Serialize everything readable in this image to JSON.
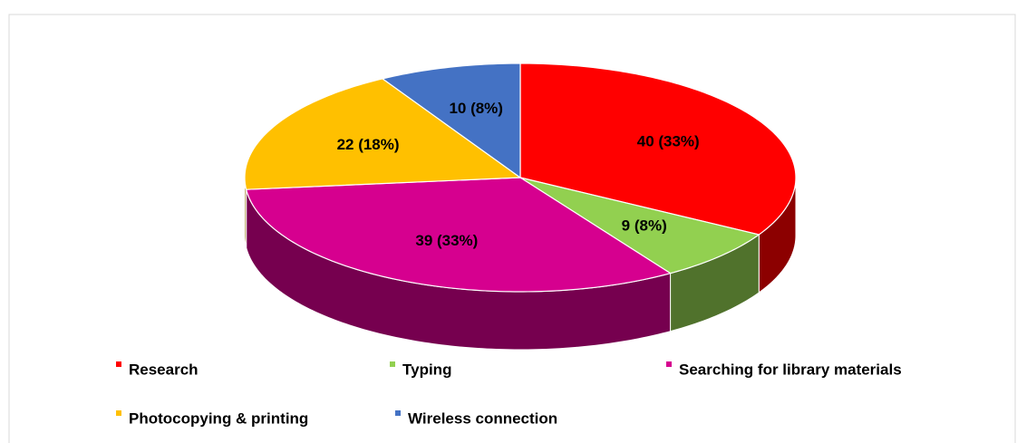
{
  "chart_data": {
    "type": "pie",
    "categories": [
      "Research",
      "Typing",
      "Searching for library materials",
      "Photocopying & printing",
      "Wireless connection"
    ],
    "values": [
      40,
      9,
      39,
      22,
      10
    ],
    "value_labels": [
      "40 (33%)",
      "9 (8%)",
      "39  (33%)",
      "22 (18%)",
      "10 (8%)"
    ],
    "colors": [
      "#ff0000",
      "#92d050",
      "#d6008f",
      "#ffc000",
      "#4472c4"
    ],
    "legend": "bottom"
  }
}
